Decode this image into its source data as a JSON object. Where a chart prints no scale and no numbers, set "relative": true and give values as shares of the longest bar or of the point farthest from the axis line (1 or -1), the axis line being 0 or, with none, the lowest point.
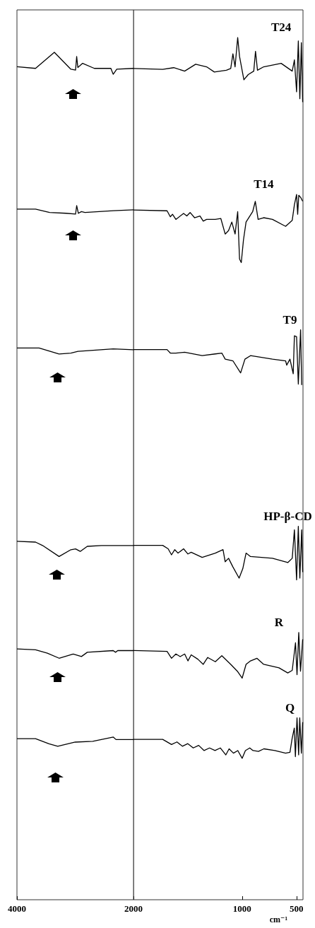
{
  "chart_data": [
    {
      "type": "line",
      "relative": true,
      "xlim": [
        4000,
        2000
      ],
      "xticks": [
        4000,
        2000
      ],
      "series": [
        {
          "color": "#000000",
          "x": [
            4000,
            3681,
            3358,
            3075,
            2994,
            2975,
            2955,
            2873,
            2672,
            2388,
            2348,
            2287,
            2000
          ],
          "values": [
            0.983,
            0.981,
            1.0,
            0.98,
            0.979,
            0.995,
            0.982,
            0.987,
            0.981,
            0.981,
            0.974,
            0.98,
            0.981
          ]
        },
        {
          "color": "#000000",
          "x": [
            4000,
            3681,
            3439,
            3156,
            2994,
            2975,
            2946,
            2893,
            2833,
            2348,
            2000
          ],
          "values": [
            0.815,
            0.815,
            0.811,
            0.81,
            0.809,
            0.819,
            0.81,
            0.812,
            0.811,
            0.813,
            0.814
          ]
        },
        {
          "color": "#000000",
          "x": [
            4000,
            3620,
            3277,
            3075,
            2954,
            2348,
            2000
          ],
          "values": [
            0.651,
            0.651,
            0.644,
            0.645,
            0.647,
            0.65,
            0.649
          ]
        },
        {
          "color": "#000000",
          "x": [
            4000,
            3681,
            3560,
            3277,
            3075,
            2994,
            2914,
            2793,
            2550,
            2000
          ],
          "values": [
            0.423,
            0.422,
            0.418,
            0.405,
            0.413,
            0.414,
            0.411,
            0.417,
            0.418,
            0.418
          ]
        },
        {
          "color": "#000000",
          "x": [
            4000,
            3681,
            3479,
            3277,
            3035,
            2893,
            2793,
            2348,
            2308,
            2270,
            2000
          ],
          "values": [
            0.296,
            0.295,
            0.291,
            0.285,
            0.29,
            0.287,
            0.292,
            0.294,
            0.292,
            0.294,
            0.294
          ]
        },
        {
          "color": "#000000",
          "x": [
            4000,
            3681,
            3450,
            3300,
            3000,
            2700,
            2348,
            2300,
            2000
          ],
          "values": [
            0.19,
            0.19,
            0.184,
            0.181,
            0.186,
            0.187,
            0.192,
            0.189,
            0.189
          ]
        }
      ]
    },
    {
      "type": "line",
      "relative": true,
      "xlim": [
        2000,
        440
      ],
      "xticks": [
        1000,
        500
      ],
      "xlabel": "cm⁻¹",
      "series": [
        {
          "name": "T24",
          "color": "#000000",
          "x": [
            2000,
            1731,
            1630,
            1529,
            1428,
            1327,
            1256,
            1145,
            1105,
            1085,
            1065,
            1041,
            1024,
            984,
            944,
            893,
            877,
            859,
            802,
            641,
            539,
            519,
            499,
            483,
            469,
            455,
            443
          ],
          "values": [
            0.964,
            0.963,
            0.965,
            0.961,
            0.969,
            0.966,
            0.96,
            0.962,
            0.964,
            0.981,
            0.966,
            1.0,
            0.978,
            0.951,
            0.957,
            0.961,
            0.984,
            0.962,
            0.966,
            0.97,
            0.961,
            0.974,
            0.937,
            0.996,
            0.929,
            0.994,
            0.925
          ]
        },
        {
          "name": "T14",
          "color": "#000000",
          "x": [
            2000,
            1691,
            1661,
            1641,
            1610,
            1539,
            1509,
            1479,
            1438,
            1388,
            1358,
            1327,
            1247,
            1196,
            1156,
            1125,
            1095,
            1065,
            1041,
            1024,
            1008,
            988,
            964,
            903,
            879,
            853,
            802,
            721,
            600,
            539,
            519,
            499,
            489,
            479,
            459,
            443
          ],
          "values": [
            0.8,
            0.799,
            0.792,
            0.795,
            0.789,
            0.796,
            0.793,
            0.797,
            0.791,
            0.793,
            0.787,
            0.789,
            0.789,
            0.79,
            0.772,
            0.776,
            0.786,
            0.772,
            0.798,
            0.743,
            0.739,
            0.765,
            0.786,
            0.798,
            0.81,
            0.789,
            0.791,
            0.789,
            0.781,
            0.788,
            0.806,
            0.818,
            0.795,
            0.817,
            0.814,
            0.81
          ]
        },
        {
          "name": "T9",
          "color": "#000000",
          "x": [
            2000,
            1691,
            1661,
            1610,
            1529,
            1368,
            1247,
            1187,
            1156,
            1085,
            1014,
            974,
            923,
            721,
            600,
            590,
            560,
            530,
            519,
            499,
            483,
            462,
            452
          ],
          "values": [
            0.638,
            0.638,
            0.634,
            0.634,
            0.635,
            0.631,
            0.633,
            0.634,
            0.627,
            0.625,
            0.611,
            0.627,
            0.631,
            0.627,
            0.625,
            0.62,
            0.627,
            0.61,
            0.654,
            0.653,
            0.598,
            0.661,
            0.597
          ]
        },
        {
          "name": "HP-β-CD",
          "color": "#000000",
          "x": [
            2000,
            1731,
            1681,
            1650,
            1620,
            1590,
            1539,
            1499,
            1469,
            1368,
            1247,
            1176,
            1156,
            1125,
            1085,
            1028,
            994,
            964,
            923,
            721,
            580,
            539,
            519,
            499,
            483,
            469,
            452,
            443
          ],
          "values": [
            0.411,
            0.411,
            0.407,
            0.4,
            0.406,
            0.402,
            0.407,
            0.401,
            0.403,
            0.397,
            0.402,
            0.406,
            0.392,
            0.396,
            0.386,
            0.373,
            0.384,
            0.402,
            0.398,
            0.396,
            0.391,
            0.396,
            0.429,
            0.371,
            0.433,
            0.373,
            0.429,
            0.38
          ]
        },
        {
          "name": "R",
          "color": "#000000",
          "x": [
            2000,
            1691,
            1650,
            1610,
            1570,
            1529,
            1499,
            1469,
            1408,
            1358,
            1317,
            1247,
            1187,
            1105,
            1044,
            1000,
            964,
            923,
            863,
            802,
            661,
            580,
            539,
            509,
            495,
            479,
            463,
            443
          ],
          "values": [
            0.289,
            0.288,
            0.28,
            0.285,
            0.282,
            0.285,
            0.277,
            0.284,
            0.279,
            0.273,
            0.281,
            0.276,
            0.283,
            0.273,
            0.265,
            0.257,
            0.273,
            0.277,
            0.28,
            0.273,
            0.269,
            0.263,
            0.266,
            0.298,
            0.261,
            0.31,
            0.265,
            0.302
          ]
        },
        {
          "name": "Q",
          "color": "#000000",
          "x": [
            2000,
            1731,
            1650,
            1600,
            1550,
            1500,
            1450,
            1400,
            1350,
            1300,
            1250,
            1200,
            1150,
            1120,
            1080,
            1040,
            1000,
            970,
            930,
            900,
            850,
            800,
            700,
            600,
            560,
            540,
            520,
            510,
            495,
            480,
            470,
            455,
            443
          ],
          "values": [
            0.186,
            0.186,
            0.18,
            0.183,
            0.178,
            0.181,
            0.176,
            0.179,
            0.173,
            0.176,
            0.173,
            0.176,
            0.168,
            0.175,
            0.17,
            0.173,
            0.164,
            0.173,
            0.176,
            0.173,
            0.172,
            0.175,
            0.173,
            0.17,
            0.171,
            0.187,
            0.199,
            0.166,
            0.211,
            0.168,
            0.211,
            0.17,
            0.206
          ]
        }
      ]
    }
  ]
}
